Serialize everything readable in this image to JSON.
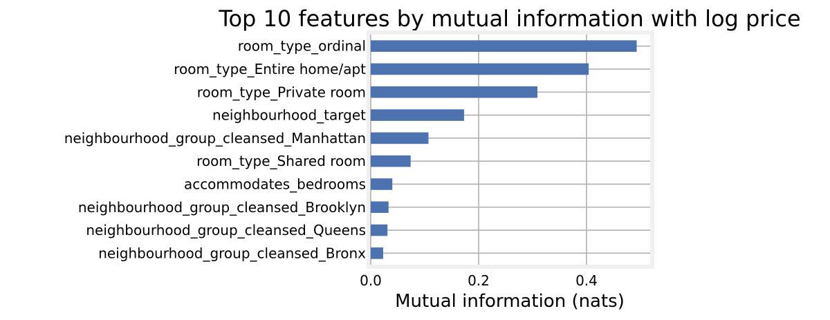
{
  "chart_data": {
    "type": "bar",
    "orientation": "horizontal",
    "title": "Top 10 features by mutual information with log price",
    "xlabel": "Mutual information (nats)",
    "ylabel": "",
    "xlim": [
      0,
      0.518
    ],
    "xticks": [
      0.0,
      0.2,
      0.4
    ],
    "xtick_labels": [
      "0.0",
      "0.2",
      "0.4"
    ],
    "grid": true,
    "legend": "none",
    "bar_color": "#4c72b0",
    "grid_color": "#b0b0b0",
    "frame_color": "#f0f0f0",
    "categories": [
      "room_type_ordinal",
      "room_type_Entire home/apt",
      "room_type_Private room",
      "neighbourhood_target",
      "neighbourhood_group_cleansed_Manhattan",
      "room_type_Shared room",
      "accommodates_bedrooms",
      "neighbourhood_group_cleansed_Brooklyn",
      "neighbourhood_group_cleansed_Queens",
      "neighbourhood_group_cleansed_Bronx"
    ],
    "values": [
      0.493,
      0.404,
      0.309,
      0.173,
      0.107,
      0.074,
      0.04,
      0.033,
      0.031,
      0.023
    ]
  }
}
